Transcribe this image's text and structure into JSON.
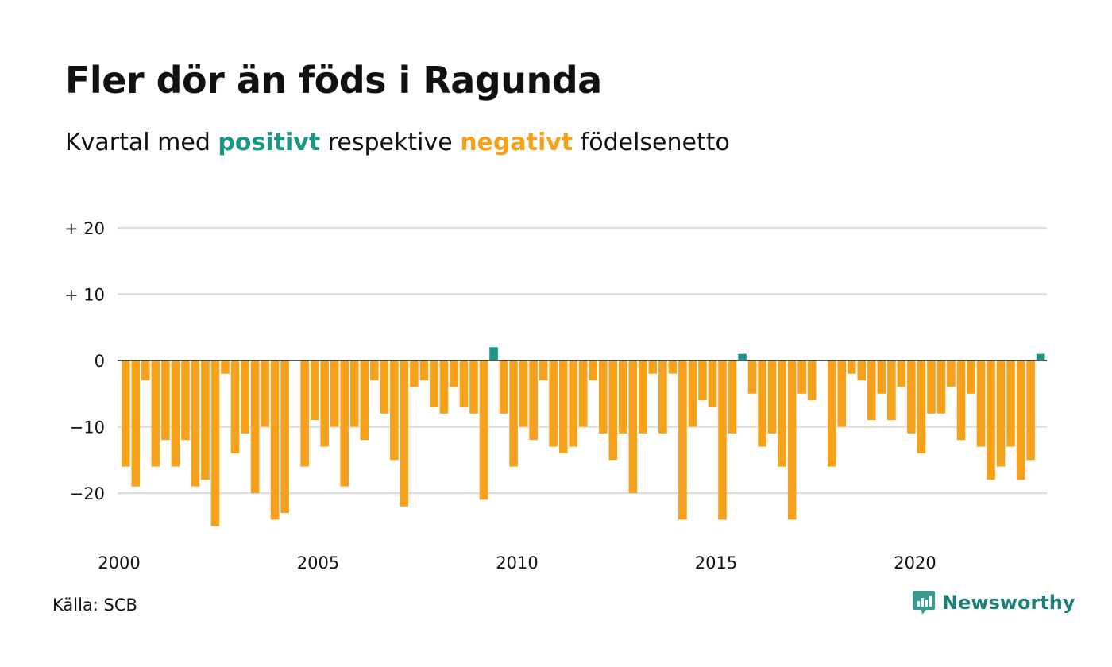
{
  "title": "Fler dör än föds i Ragunda",
  "subtitle": {
    "prefix": "Kvartal med ",
    "positive_word": "positivt",
    "middle": " respektive ",
    "negative_word": "negativt",
    "suffix": " födelsenetto"
  },
  "source": "Källa: SCB",
  "brand": "Newsworthy",
  "colors": {
    "positive": "#1b9687",
    "negative": "#f5a11c",
    "grid": "#dddddd",
    "text": "#111111",
    "brand": "#1f7e77"
  },
  "chart_data": {
    "type": "bar",
    "ylim": [
      -26,
      21
    ],
    "yticks": [
      {
        "value": 20,
        "label": "+ 20"
      },
      {
        "value": 10,
        "label": "+ 10"
      },
      {
        "value": 0,
        "label": "0"
      },
      {
        "value": -10,
        "label": "−10"
      },
      {
        "value": -20,
        "label": "−20"
      }
    ],
    "xticks": [
      {
        "value": 2000,
        "label": "2000"
      },
      {
        "value": 2005,
        "label": "2005"
      },
      {
        "value": 2010,
        "label": "2010"
      },
      {
        "value": 2015,
        "label": "2015"
      },
      {
        "value": 2020,
        "label": "2020"
      }
    ],
    "grid": true,
    "legend": "none",
    "x_start": "2000 Q1",
    "periods_per_year": 4,
    "values": [
      -16,
      -19,
      -3,
      -16,
      -12,
      -16,
      -12,
      -19,
      -18,
      -25,
      -2,
      -14,
      -11,
      -20,
      -10,
      -24,
      -23,
      0,
      -16,
      -9,
      -13,
      -10,
      -19,
      -10,
      -12,
      -3,
      -8,
      -15,
      -22,
      -4,
      -3,
      -7,
      -8,
      -4,
      -7,
      -8,
      -21,
      2,
      -8,
      -16,
      -10,
      -12,
      -3,
      -13,
      -14,
      -13,
      -10,
      -3,
      -11,
      -15,
      -11,
      -20,
      -11,
      -2,
      -11,
      -2,
      -24,
      -10,
      -6,
      -7,
      -24,
      -11,
      1,
      -5,
      -13,
      -11,
      -16,
      -24,
      -5,
      -6,
      0,
      -16,
      -10,
      -2,
      -3,
      -9,
      -5,
      -9,
      -4,
      -11,
      -14,
      -8,
      -8,
      -4,
      -12,
      -5,
      -13,
      -18,
      -16,
      -13,
      -18,
      -15,
      1
    ]
  }
}
